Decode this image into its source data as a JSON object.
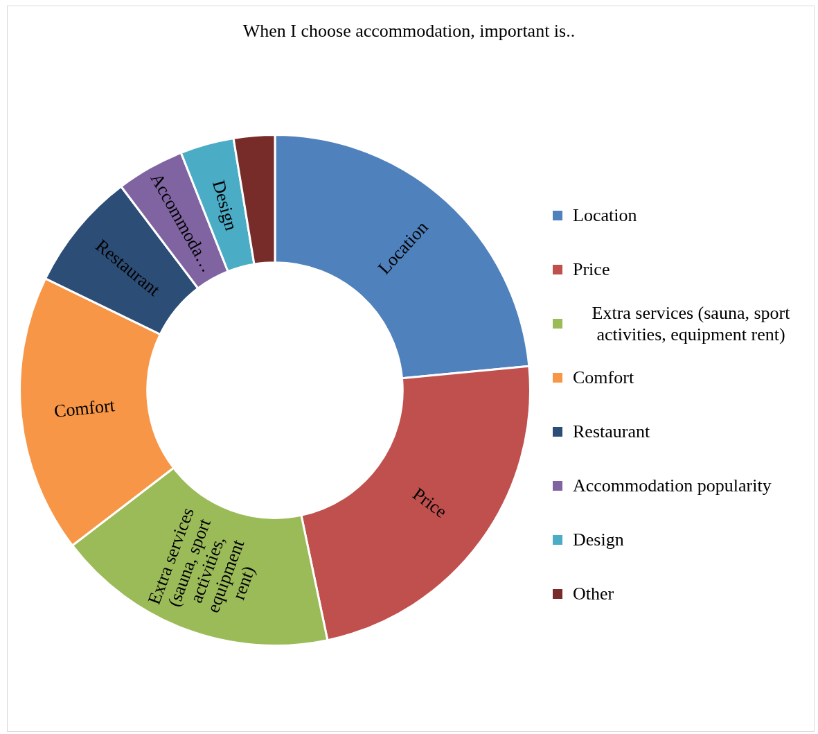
{
  "chart_data": {
    "type": "donut",
    "title": "When I choose accommodation, important is..",
    "categories": [
      "Location",
      "Price",
      "Extra services (sauna, sport activities, equipment rent)",
      "Comfort",
      "Restaurant",
      "Accommodation popularity",
      "Design",
      "Other"
    ],
    "values": [
      23.5,
      23.2,
      17.9,
      17.6,
      7.5,
      4.3,
      3.4,
      2.6
    ],
    "colors": [
      "#4f81bd",
      "#c0504d",
      "#9bbb59",
      "#f79646",
      "#2c4d75",
      "#8064a2",
      "#4bacc6",
      "#772c2a"
    ],
    "legend": "right",
    "annotations": [
      {
        "text": "Location",
        "x": "Location"
      },
      {
        "text": "Price",
        "x": "Price"
      },
      {
        "text": "Extra services (sauna, sport activities, equipment rent)",
        "x": "Extra services (sauna, sport activities, equipment rent)"
      },
      {
        "text": "Comfort",
        "x": "Comfort"
      },
      {
        "text": "Restaurant",
        "x": "Restaurant"
      },
      {
        "text": "Accommoda…",
        "x": "Accommodation popularity"
      },
      {
        "text": "Design",
        "x": "Design"
      }
    ]
  }
}
